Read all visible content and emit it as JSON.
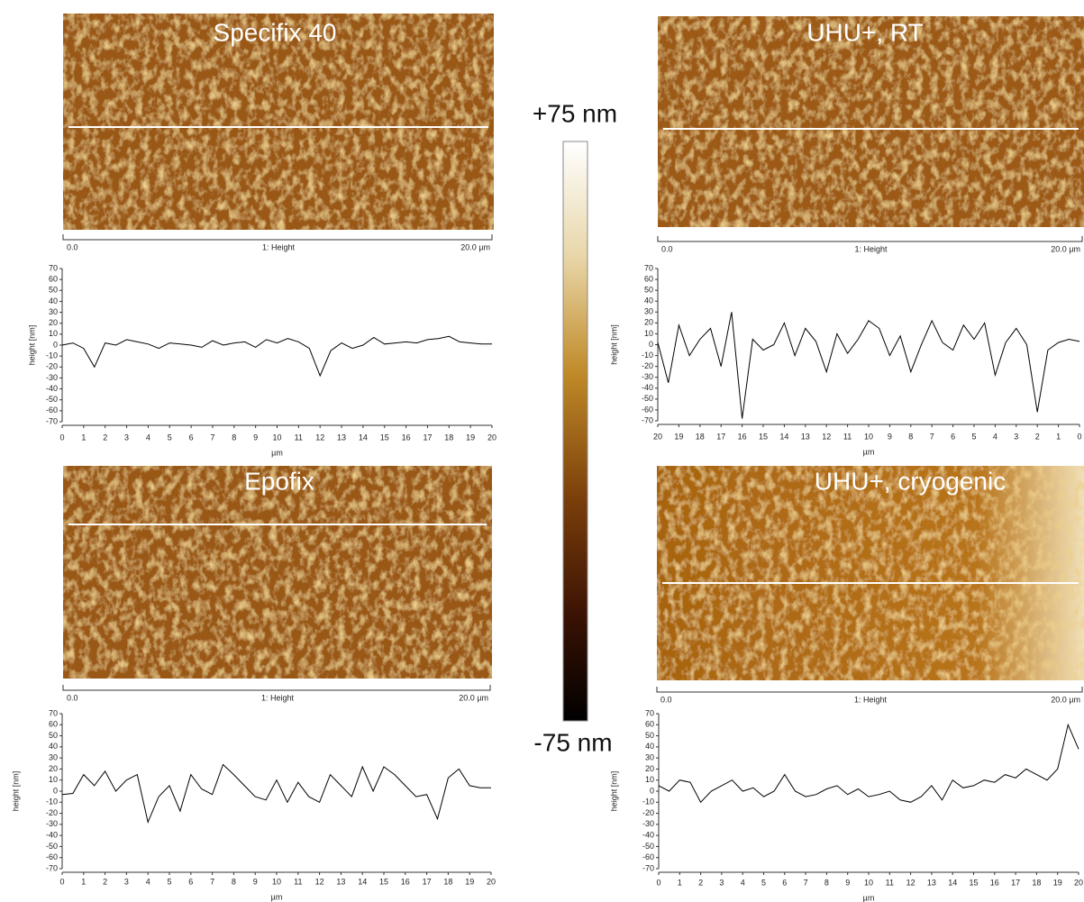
{
  "chart_data": [
    {
      "type": "line",
      "title": "Specifix 40",
      "scale_labels": [
        "0.0",
        "1: Height",
        "20.0 µm"
      ],
      "xlabel": "µm",
      "ylabel": "height [nm]",
      "color": "#000000",
      "x": [
        0,
        0.5,
        1,
        1.5,
        2,
        2.5,
        3,
        3.5,
        4,
        4.5,
        5,
        5.5,
        6,
        6.5,
        7,
        7.5,
        8,
        8.5,
        9,
        9.5,
        10,
        10.5,
        11,
        11.5,
        12,
        12.5,
        13,
        13.5,
        14,
        14.5,
        15,
        15.5,
        16,
        16.5,
        17,
        17.5,
        18,
        18.5,
        19,
        19.5,
        20
      ],
      "values": [
        0,
        2,
        -3,
        -20,
        2,
        0,
        5,
        3,
        1,
        -3,
        2,
        1,
        0,
        -2,
        4,
        0,
        2,
        3,
        -2,
        5,
        2,
        6,
        3,
        -3,
        -28,
        -5,
        2,
        -3,
        0,
        7,
        1,
        2,
        3,
        2,
        5,
        6,
        8,
        3,
        2,
        1,
        1
      ],
      "xlim": [
        0,
        20
      ],
      "ylim": [
        -70,
        70
      ],
      "xticks": [
        0,
        1,
        2,
        3,
        4,
        5,
        6,
        7,
        8,
        9,
        10,
        11,
        12,
        13,
        14,
        15,
        16,
        17,
        18,
        19,
        20
      ],
      "yticks": [
        70,
        60,
        50,
        40,
        30,
        20,
        10,
        0,
        -10,
        -20,
        -30,
        -40,
        -50,
        -60,
        -70
      ]
    },
    {
      "type": "line",
      "title": "UHU+, RT",
      "scale_labels": [
        "0.0",
        "1: Height",
        "20.0 µm"
      ],
      "xlabel": "µm",
      "ylabel": "height [nm]",
      "color": "#000000",
      "x": [
        0,
        0.5,
        1,
        1.5,
        2,
        2.5,
        3,
        3.5,
        4,
        4.5,
        5,
        5.5,
        6,
        6.5,
        7,
        7.5,
        8,
        8.5,
        9,
        9.5,
        10,
        10.5,
        11,
        11.5,
        12,
        12.5,
        13,
        13.5,
        14,
        14.5,
        15,
        15.5,
        16,
        16.5,
        17,
        17.5,
        18,
        18.5,
        19,
        19.5,
        20
      ],
      "values": [
        3,
        5,
        2,
        -5,
        -62,
        0,
        15,
        2,
        -28,
        20,
        5,
        18,
        -5,
        2,
        22,
        0,
        -25,
        8,
        -10,
        15,
        22,
        5,
        -8,
        10,
        -25,
        3,
        15,
        -10,
        20,
        0,
        -5,
        5,
        -68,
        30,
        -20,
        15,
        5,
        -10,
        18,
        -35,
        2
      ],
      "xlim": [
        20,
        0
      ],
      "ylim": [
        -70,
        70
      ],
      "xticks": [
        20,
        19,
        18,
        17,
        16,
        15,
        14,
        13,
        12,
        11,
        10,
        9,
        8,
        7,
        6,
        5,
        4,
        3,
        2,
        1,
        0
      ],
      "yticks": [
        70,
        60,
        50,
        40,
        30,
        20,
        10,
        0,
        -10,
        -20,
        -30,
        -40,
        -50,
        -60,
        -70
      ]
    },
    {
      "type": "line",
      "title": "Epofix",
      "scale_labels": [
        "0.0",
        "1: Height",
        "20.0 µm"
      ],
      "xlabel": "µm",
      "ylabel": "height [nm]",
      "color": "#000000",
      "x": [
        0,
        0.5,
        1,
        1.5,
        2,
        2.5,
        3,
        3.5,
        4,
        4.5,
        5,
        5.5,
        6,
        6.5,
        7,
        7.5,
        8,
        8.5,
        9,
        9.5,
        10,
        10.5,
        11,
        11.5,
        12,
        12.5,
        13,
        13.5,
        14,
        14.5,
        15,
        15.5,
        16,
        16.5,
        17,
        17.5,
        18,
        18.5,
        19,
        19.5,
        20
      ],
      "values": [
        -3,
        -2,
        15,
        5,
        18,
        0,
        10,
        15,
        -28,
        -5,
        5,
        -18,
        15,
        2,
        -3,
        24,
        15,
        5,
        -5,
        -8,
        10,
        -10,
        8,
        -5,
        -10,
        15,
        5,
        -5,
        22,
        0,
        22,
        15,
        5,
        -5,
        -3,
        -25,
        12,
        20,
        5,
        3,
        3
      ],
      "xlim": [
        0,
        20
      ],
      "ylim": [
        -70,
        70
      ],
      "xticks": [
        0,
        1,
        2,
        3,
        4,
        5,
        6,
        7,
        8,
        9,
        10,
        11,
        12,
        13,
        14,
        15,
        16,
        17,
        18,
        19,
        20
      ],
      "yticks": [
        70,
        60,
        50,
        40,
        30,
        20,
        10,
        0,
        -10,
        -20,
        -30,
        -40,
        -50,
        -60,
        -70
      ]
    },
    {
      "type": "line",
      "title": "UHU+, cryogenic",
      "scale_labels": [
        "0.0",
        "1: Height",
        "20.0 µm"
      ],
      "xlabel": "µm",
      "ylabel": "height [nm]",
      "color": "#000000",
      "x": [
        0,
        0.5,
        1,
        1.5,
        2,
        2.5,
        3,
        3.5,
        4,
        4.5,
        5,
        5.5,
        6,
        6.5,
        7,
        7.5,
        8,
        8.5,
        9,
        9.5,
        10,
        10.5,
        11,
        11.5,
        12,
        12.5,
        13,
        13.5,
        14,
        14.5,
        15,
        15.5,
        16,
        16.5,
        17,
        17.5,
        18,
        18.5,
        19,
        19.5,
        20
      ],
      "values": [
        5,
        0,
        10,
        8,
        -10,
        0,
        5,
        10,
        0,
        3,
        -5,
        0,
        15,
        0,
        -5,
        -3,
        2,
        5,
        -3,
        2,
        -5,
        -3,
        0,
        -8,
        -10,
        -5,
        5,
        -8,
        10,
        3,
        5,
        10,
        8,
        15,
        12,
        20,
        15,
        10,
        20,
        60,
        38
      ],
      "xlim": [
        0,
        20
      ],
      "ylim": [
        -70,
        70
      ],
      "xticks": [
        0,
        1,
        2,
        3,
        4,
        5,
        6,
        7,
        8,
        9,
        10,
        11,
        12,
        13,
        14,
        15,
        16,
        17,
        18,
        19,
        20
      ],
      "yticks": [
        70,
        60,
        50,
        40,
        30,
        20,
        10,
        0,
        -10,
        -20,
        -30,
        -40,
        -50,
        -60,
        -70
      ]
    }
  ],
  "colorbar": {
    "top_label": "+75 nm",
    "bottom_label": "-75 nm"
  }
}
